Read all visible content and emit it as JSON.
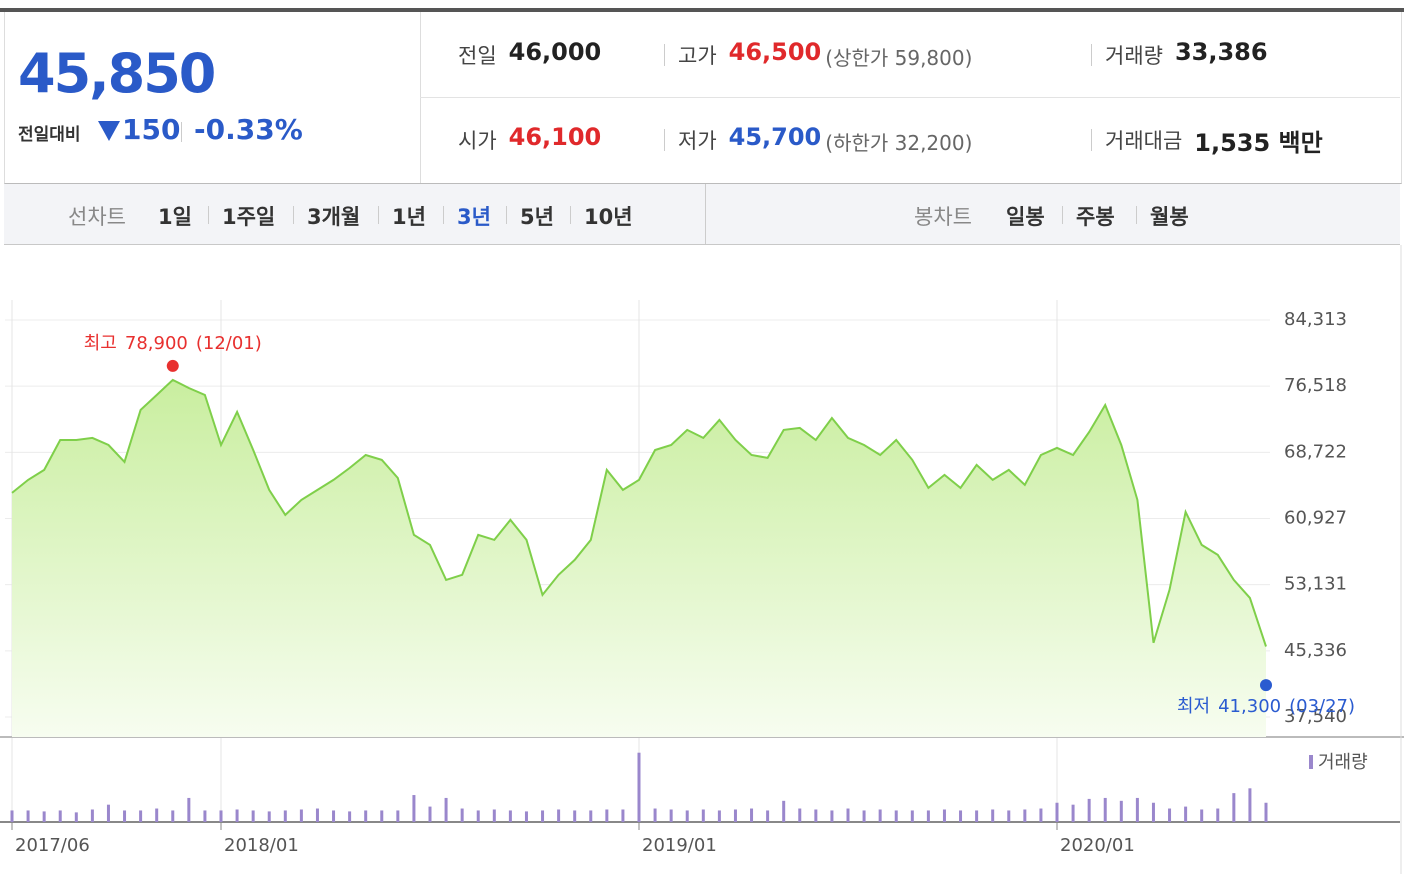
{
  "header": {
    "price": "45,850",
    "change_label": "전일대비",
    "change": "150",
    "change_rate": "-0.33%",
    "rows": [
      [
        {
          "label": "전일",
          "value": "46,000"
        },
        {
          "label": "고가",
          "value": "46,500",
          "note": "(상한가 59,800)"
        },
        {
          "label": "거래량",
          "value": "33,386"
        }
      ],
      [
        {
          "label": "시가",
          "value": "46,100"
        },
        {
          "label": "저가",
          "value": "45,700",
          "note": "(하한가 32,200)"
        },
        {
          "label": "거래대금",
          "value": "1,535 백만"
        }
      ]
    ]
  },
  "tabs": {
    "line_label": "선차트",
    "line_tabs": [
      "1일",
      "1주일",
      "3개월",
      "1년",
      "3년",
      "5년",
      "10년"
    ],
    "active": "3년",
    "candle_label": "봉차트",
    "candle_tabs": [
      "일봉",
      "주봉",
      "월봉"
    ]
  },
  "chart_data": {
    "type": "line",
    "color": "#7fcf4a",
    "categories": [
      "2017/06",
      null,
      null,
      null,
      null,
      null,
      null,
      null,
      null,
      null,
      null,
      null,
      null,
      "2018/01",
      null,
      null,
      null,
      null,
      null,
      null,
      null,
      null,
      null,
      null,
      null,
      null,
      null,
      null,
      null,
      null,
      null,
      null,
      null,
      null,
      null,
      null,
      null,
      null,
      null,
      "2019/01",
      null,
      null,
      null,
      null,
      null,
      null,
      null,
      null,
      null,
      null,
      null,
      null,
      null,
      null,
      null,
      null,
      null,
      null,
      null,
      null,
      null,
      null,
      null,
      null,
      null,
      "2020/01",
      null,
      null,
      null,
      null,
      null,
      null,
      null,
      null,
      null,
      null,
      null,
      null,
      null
    ],
    "values": [
      63940,
      65470,
      66650,
      70180,
      70180,
      70420,
      69590,
      67590,
      73720,
      75480,
      77250,
      76300,
      75480,
      69590,
      73480,
      69000,
      64290,
      61350,
      63120,
      64290,
      65470,
      66880,
      68410,
      67830,
      65700,
      58990,
      57820,
      53690,
      54290,
      58990,
      58410,
      60760,
      58410,
      51930,
      54290,
      56050,
      58410,
      66650,
      64290,
      65470,
      69000,
      69590,
      71360,
      70420,
      72540,
      70180,
      68410,
      68060,
      71360,
      71600,
      70180,
      72770,
      70420,
      69590,
      68410,
      70180,
      67830,
      64530,
      66060,
      64530,
      67240,
      65470,
      66650,
      64880,
      68410,
      69240,
      68410,
      71120,
      74300,
      69590,
      63120,
      46280,
      52520,
      61700,
      57820,
      56640,
      53690,
      51570,
      45850
    ],
    "ylim": [
      35185,
      86668
    ],
    "yticks": [
      {
        "value": 37540,
        "label": "37,540"
      },
      {
        "value": 45336,
        "label": "45,336"
      },
      {
        "value": 53131,
        "label": "53,131"
      },
      {
        "value": 60927,
        "label": "60,927"
      },
      {
        "value": 68722,
        "label": "68,722"
      },
      {
        "value": 76518,
        "label": "76,518"
      },
      {
        "value": 84313,
        "label": "84,313"
      }
    ],
    "grid": true,
    "high": {
      "label": "최고",
      "value": 78900,
      "value_label": "78,900",
      "date": "(12/01)",
      "color": "#e8302f"
    },
    "low": {
      "label": "최저",
      "value": 41300,
      "value_label": "41,300",
      "date": "(03/27)",
      "color": "#2a5bd0"
    },
    "volume": {
      "label": "거래량",
      "color": "#9a87cc",
      "ylim": [
        0,
        80
      ],
      "values": [
        12,
        12,
        11,
        12,
        10,
        13,
        18,
        12,
        12,
        14,
        12,
        25,
        12,
        12,
        13,
        12,
        11,
        12,
        13,
        14,
        12,
        11,
        12,
        12,
        12,
        28,
        16,
        25,
        14,
        12,
        13,
        12,
        11,
        12,
        13,
        12,
        12,
        13,
        13,
        72,
        14,
        13,
        12,
        13,
        12,
        13,
        14,
        12,
        22,
        14,
        13,
        12,
        14,
        12,
        13,
        12,
        12,
        12,
        13,
        12,
        12,
        13,
        12,
        13,
        14,
        20,
        18,
        24,
        25,
        22,
        25,
        20,
        14,
        16,
        13,
        14,
        30,
        35,
        20
      ]
    }
  }
}
